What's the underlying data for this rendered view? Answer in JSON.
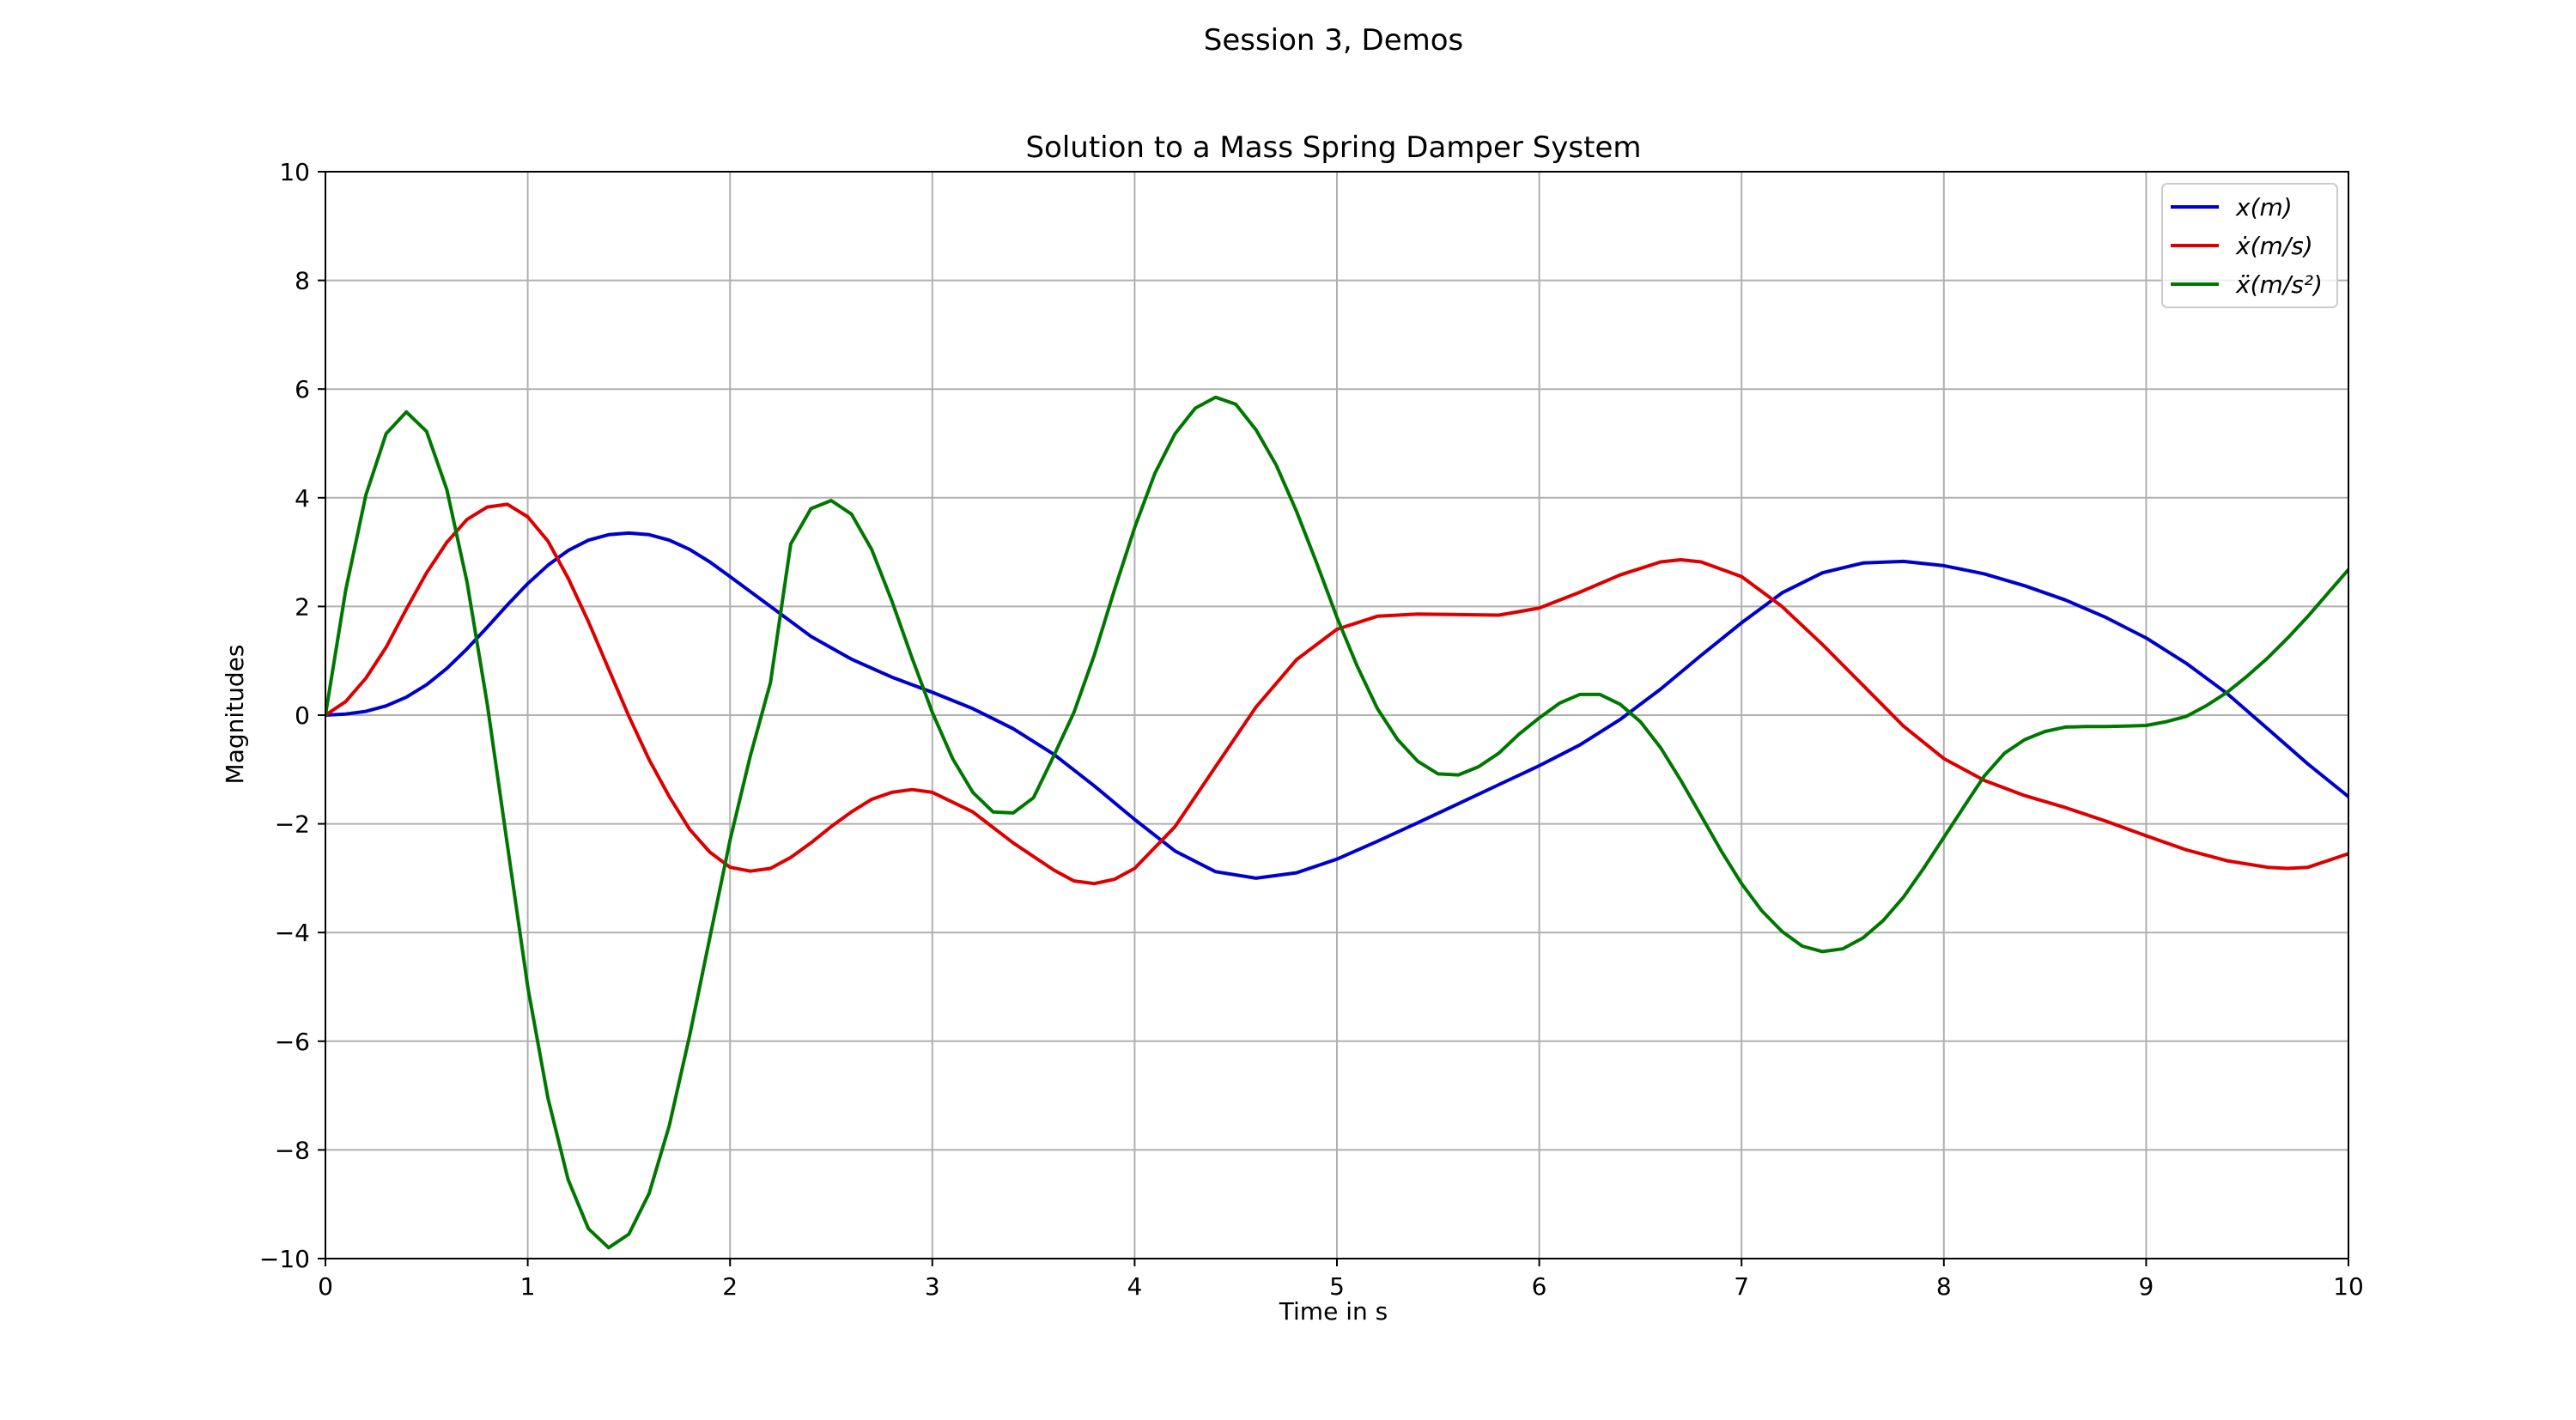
{
  "figure": {
    "suptitle": "Session 3, Demos"
  },
  "chart_data": {
    "type": "line",
    "title": "Solution to a Mass Spring Damper System",
    "xlabel": "Time in s",
    "ylabel": "Magnitudes",
    "xlim": [
      0,
      10
    ],
    "ylim": [
      -10,
      10
    ],
    "xticks": [
      0,
      1,
      2,
      3,
      4,
      5,
      6,
      7,
      8,
      9,
      10
    ],
    "xtick_labels": [
      "0",
      "1",
      "2",
      "3",
      "4",
      "5",
      "6",
      "7",
      "8",
      "9",
      "10"
    ],
    "yticks": [
      -10,
      -8,
      -6,
      -4,
      -2,
      0,
      2,
      4,
      6,
      8,
      10
    ],
    "ytick_labels": [
      "−10",
      "−8",
      "−6",
      "−4",
      "−2",
      "0",
      "2",
      "4",
      "6",
      "8",
      "10"
    ],
    "grid": true,
    "legend_position": "top-right",
    "series": [
      {
        "name": "x(m)",
        "color": "#0000cc",
        "x": [
          0,
          0.1,
          0.2,
          0.3,
          0.4,
          0.5,
          0.6,
          0.7,
          0.8,
          0.9,
          1.0,
          1.1,
          1.2,
          1.3,
          1.4,
          1.5,
          1.6,
          1.7,
          1.8,
          1.9,
          2.0,
          2.2,
          2.4,
          2.6,
          2.8,
          3.0,
          3.2,
          3.4,
          3.6,
          3.8,
          4.0,
          4.2,
          4.4,
          4.6,
          4.8,
          5.0,
          5.2,
          5.4,
          5.6,
          5.8,
          6.0,
          6.2,
          6.4,
          6.6,
          6.8,
          7.0,
          7.2,
          7.4,
          7.6,
          7.8,
          8.0,
          8.2,
          8.4,
          8.6,
          8.8,
          9.0,
          9.2,
          9.4,
          9.6,
          9.8,
          10.0
        ],
        "y": [
          0,
          0.02,
          0.07,
          0.17,
          0.33,
          0.56,
          0.86,
          1.22,
          1.62,
          2.03,
          2.42,
          2.76,
          3.03,
          3.22,
          3.32,
          3.35,
          3.32,
          3.22,
          3.05,
          2.82,
          2.55,
          2.0,
          1.45,
          1.03,
          0.7,
          0.42,
          0.12,
          -0.25,
          -0.72,
          -1.3,
          -1.92,
          -2.5,
          -2.88,
          -3.0,
          -2.9,
          -2.65,
          -2.32,
          -1.98,
          -1.63,
          -1.28,
          -0.93,
          -0.55,
          -0.08,
          0.48,
          1.1,
          1.7,
          2.25,
          2.62,
          2.8,
          2.83,
          2.75,
          2.6,
          2.38,
          2.12,
          1.8,
          1.42,
          0.95,
          0.4,
          -0.25,
          -0.9,
          -1.5
        ]
      },
      {
        "name": "ẋ(m/s)",
        "color": "#dd0000",
        "x": [
          0,
          0.1,
          0.2,
          0.3,
          0.4,
          0.5,
          0.6,
          0.7,
          0.8,
          0.9,
          1.0,
          1.1,
          1.2,
          1.3,
          1.4,
          1.5,
          1.6,
          1.7,
          1.8,
          1.9,
          2.0,
          2.1,
          2.2,
          2.3,
          2.4,
          2.5,
          2.6,
          2.7,
          2.8,
          2.9,
          3.0,
          3.2,
          3.4,
          3.6,
          3.7,
          3.8,
          3.9,
          4.0,
          4.2,
          4.4,
          4.6,
          4.8,
          5.0,
          5.2,
          5.4,
          5.6,
          5.8,
          6.0,
          6.2,
          6.4,
          6.6,
          6.7,
          6.8,
          7.0,
          7.2,
          7.4,
          7.6,
          7.8,
          8.0,
          8.2,
          8.4,
          8.6,
          8.8,
          9.0,
          9.2,
          9.4,
          9.6,
          9.7,
          9.8,
          10.0
        ],
        "y": [
          0,
          0.25,
          0.68,
          1.25,
          1.95,
          2.62,
          3.18,
          3.6,
          3.83,
          3.88,
          3.65,
          3.2,
          2.52,
          1.72,
          0.85,
          -0.02,
          -0.82,
          -1.5,
          -2.1,
          -2.52,
          -2.8,
          -2.87,
          -2.82,
          -2.62,
          -2.35,
          -2.05,
          -1.78,
          -1.55,
          -1.42,
          -1.37,
          -1.42,
          -1.78,
          -2.35,
          -2.85,
          -3.05,
          -3.1,
          -3.02,
          -2.82,
          -2.05,
          -0.95,
          0.15,
          1.02,
          1.58,
          1.82,
          1.86,
          1.85,
          1.84,
          1.97,
          2.26,
          2.58,
          2.82,
          2.86,
          2.82,
          2.55,
          2.0,
          1.3,
          0.55,
          -0.2,
          -0.8,
          -1.2,
          -1.48,
          -1.7,
          -1.95,
          -2.22,
          -2.48,
          -2.68,
          -2.8,
          -2.82,
          -2.8,
          -2.55
        ]
      },
      {
        "name": "ẍ(m/s²)",
        "color": "#007700",
        "x": [
          0,
          0.1,
          0.2,
          0.3,
          0.4,
          0.5,
          0.6,
          0.7,
          0.8,
          0.9,
          1.0,
          1.1,
          1.2,
          1.3,
          1.4,
          1.5,
          1.6,
          1.7,
          1.8,
          1.9,
          2.0,
          2.1,
          2.2,
          2.3,
          2.4,
          2.5,
          2.6,
          2.7,
          2.8,
          2.9,
          3.0,
          3.1,
          3.2,
          3.3,
          3.4,
          3.5,
          3.6,
          3.7,
          3.8,
          3.9,
          4.0,
          4.1,
          4.2,
          4.3,
          4.4,
          4.5,
          4.6,
          4.7,
          4.8,
          4.9,
          5.0,
          5.1,
          5.2,
          5.3,
          5.4,
          5.5,
          5.6,
          5.7,
          5.8,
          5.9,
          6.0,
          6.1,
          6.2,
          6.3,
          6.4,
          6.5,
          6.6,
          6.7,
          6.8,
          6.9,
          7.0,
          7.1,
          7.2,
          7.3,
          7.4,
          7.5,
          7.6,
          7.7,
          7.8,
          7.9,
          8.0,
          8.1,
          8.2,
          8.3,
          8.4,
          8.5,
          8.6,
          8.7,
          8.8,
          8.9,
          9.0,
          9.1,
          9.2,
          9.3,
          9.4,
          9.5,
          9.6,
          9.7,
          9.8,
          9.9,
          10.0
        ],
        "y": [
          0,
          2.3,
          4.05,
          5.18,
          5.58,
          5.22,
          4.15,
          2.45,
          0.2,
          -2.4,
          -5.0,
          -7.05,
          -8.55,
          -9.45,
          -9.8,
          -9.55,
          -8.8,
          -7.55,
          -5.9,
          -4.1,
          -2.3,
          -0.75,
          0.6,
          3.15,
          3.8,
          3.95,
          3.7,
          3.05,
          2.1,
          1.05,
          0.05,
          -0.8,
          -1.42,
          -1.78,
          -1.8,
          -1.52,
          -0.75,
          0.05,
          1.1,
          2.3,
          3.45,
          4.45,
          5.18,
          5.65,
          5.85,
          5.72,
          5.25,
          4.6,
          3.75,
          2.8,
          1.8,
          0.9,
          0.12,
          -0.45,
          -0.85,
          -1.08,
          -1.1,
          -0.95,
          -0.7,
          -0.35,
          -0.05,
          0.22,
          0.38,
          0.38,
          0.2,
          -0.12,
          -0.6,
          -1.2,
          -1.85,
          -2.5,
          -3.1,
          -3.6,
          -3.98,
          -4.25,
          -4.35,
          -4.3,
          -4.1,
          -3.78,
          -3.35,
          -2.82,
          -2.25,
          -1.68,
          -1.12,
          -0.7,
          -0.45,
          -0.3,
          -0.22,
          -0.21,
          -0.21,
          -0.2,
          -0.19,
          -0.12,
          -0.02,
          0.18,
          0.42,
          0.72,
          1.05,
          1.42,
          1.82,
          2.25,
          2.68
        ]
      }
    ]
  }
}
